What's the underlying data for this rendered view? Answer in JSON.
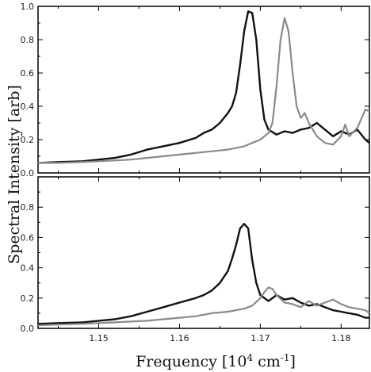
{
  "chart_data": [
    {
      "type": "line",
      "panel": "top",
      "xlim": [
        1.1425,
        1.1835
      ],
      "ylim": [
        0.0,
        1.0
      ],
      "yticks": [
        "0.0",
        "0.2",
        "0.4",
        "0.6",
        "0.8",
        "1.0"
      ],
      "xticks": [],
      "series": [
        {
          "color": "#111111",
          "x": [
            1.1425,
            1.145,
            1.148,
            1.15,
            1.152,
            1.154,
            1.156,
            1.158,
            1.16,
            1.162,
            1.163,
            1.164,
            1.165,
            1.166,
            1.1665,
            1.167,
            1.1675,
            1.168,
            1.1685,
            1.169,
            1.1695,
            1.17,
            1.1705,
            1.171,
            1.172,
            1.173,
            1.174,
            1.175,
            1.176,
            1.177,
            1.178,
            1.179,
            1.18,
            1.181,
            1.182,
            1.183,
            1.1835
          ],
          "y": [
            0.06,
            0.065,
            0.07,
            0.08,
            0.09,
            0.11,
            0.14,
            0.16,
            0.18,
            0.21,
            0.24,
            0.26,
            0.3,
            0.36,
            0.4,
            0.48,
            0.65,
            0.85,
            0.97,
            0.96,
            0.8,
            0.5,
            0.32,
            0.26,
            0.23,
            0.25,
            0.24,
            0.26,
            0.27,
            0.3,
            0.26,
            0.22,
            0.25,
            0.23,
            0.26,
            0.2,
            0.18
          ]
        },
        {
          "color": "#8a8a8a",
          "x": [
            1.1425,
            1.145,
            1.148,
            1.15,
            1.152,
            1.154,
            1.156,
            1.158,
            1.16,
            1.162,
            1.164,
            1.166,
            1.168,
            1.169,
            1.17,
            1.171,
            1.1715,
            1.172,
            1.1725,
            1.173,
            1.1735,
            1.174,
            1.1745,
            1.175,
            1.1755,
            1.176,
            1.177,
            1.178,
            1.179,
            1.18,
            1.1805,
            1.181,
            1.182,
            1.183,
            1.1835
          ],
          "y": [
            0.06,
            0.06,
            0.065,
            0.07,
            0.075,
            0.08,
            0.09,
            0.1,
            0.11,
            0.12,
            0.13,
            0.14,
            0.16,
            0.18,
            0.2,
            0.24,
            0.3,
            0.52,
            0.8,
            0.93,
            0.85,
            0.6,
            0.4,
            0.33,
            0.36,
            0.3,
            0.22,
            0.18,
            0.17,
            0.22,
            0.29,
            0.22,
            0.27,
            0.38,
            0.37
          ]
        }
      ]
    },
    {
      "type": "line",
      "panel": "bottom",
      "xlim": [
        1.1425,
        1.1835
      ],
      "ylim": [
        0.0,
        1.0
      ],
      "yticks": [
        "0.0",
        "0.2",
        "0.4",
        "0.6",
        "0.8"
      ],
      "xticks": [
        "1.15",
        "1.16",
        "1.17",
        "1.18"
      ],
      "xlabel": "Frequency [10⁴ cm⁻¹]",
      "series": [
        {
          "color": "#111111",
          "x": [
            1.1425,
            1.145,
            1.148,
            1.15,
            1.152,
            1.154,
            1.156,
            1.158,
            1.16,
            1.162,
            1.163,
            1.164,
            1.165,
            1.166,
            1.1665,
            1.167,
            1.1675,
            1.168,
            1.1685,
            1.169,
            1.1695,
            1.17,
            1.171,
            1.172,
            1.173,
            1.174,
            1.175,
            1.176,
            1.177,
            1.178,
            1.179,
            1.18,
            1.181,
            1.182,
            1.183,
            1.1835
          ],
          "y": [
            0.03,
            0.035,
            0.04,
            0.05,
            0.06,
            0.08,
            0.11,
            0.14,
            0.17,
            0.2,
            0.22,
            0.25,
            0.3,
            0.38,
            0.46,
            0.55,
            0.66,
            0.69,
            0.66,
            0.45,
            0.3,
            0.22,
            0.18,
            0.22,
            0.19,
            0.2,
            0.17,
            0.15,
            0.16,
            0.14,
            0.12,
            0.11,
            0.1,
            0.09,
            0.07,
            0.07
          ]
        },
        {
          "color": "#8a8a8a",
          "x": [
            1.1425,
            1.145,
            1.148,
            1.15,
            1.152,
            1.154,
            1.156,
            1.158,
            1.16,
            1.162,
            1.164,
            1.166,
            1.168,
            1.169,
            1.17,
            1.1705,
            1.171,
            1.1715,
            1.172,
            1.173,
            1.174,
            1.175,
            1.176,
            1.177,
            1.178,
            1.179,
            1.18,
            1.181,
            1.182,
            1.183,
            1.1835
          ],
          "y": [
            0.02,
            0.025,
            0.03,
            0.035,
            0.04,
            0.045,
            0.05,
            0.06,
            0.07,
            0.08,
            0.1,
            0.11,
            0.13,
            0.15,
            0.2,
            0.24,
            0.27,
            0.26,
            0.22,
            0.17,
            0.16,
            0.14,
            0.18,
            0.15,
            0.17,
            0.19,
            0.16,
            0.14,
            0.13,
            0.12,
            0.1
          ]
        }
      ]
    }
  ],
  "ylabel": "Spectral Intensity [arb]"
}
